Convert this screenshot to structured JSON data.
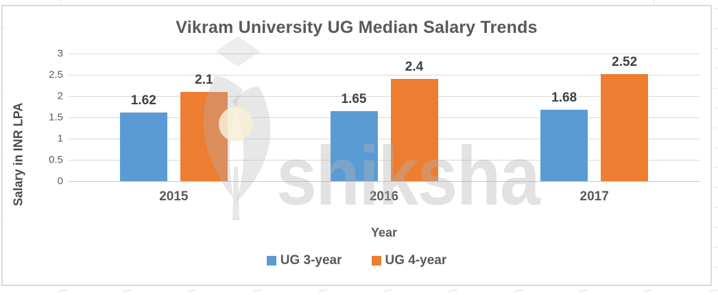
{
  "chart_data": {
    "type": "bar",
    "title": "Vikram University UG Median Salary Trends",
    "xlabel": "Year",
    "ylabel": "Salary in INR LPA",
    "categories": [
      "2015",
      "2016",
      "2017"
    ],
    "series": [
      {
        "name": "UG 3-year",
        "color": "#5B9BD5",
        "values": [
          1.62,
          1.65,
          1.68
        ]
      },
      {
        "name": "UG 4-year",
        "color": "#ED7D31",
        "values": [
          2.1,
          2.4,
          2.52
        ]
      }
    ],
    "data_labels": [
      [
        "1.62",
        "1.65",
        "1.68"
      ],
      [
        "2.1",
        "2.4",
        "2.52"
      ]
    ],
    "ylim": [
      0,
      3
    ],
    "yticks": [
      0,
      0.5,
      1,
      1.5,
      2,
      2.5,
      3
    ],
    "ytick_labels": [
      "0",
      "0.5",
      "1",
      "1.5",
      "2",
      "2.5",
      "3"
    ],
    "grid": true,
    "legend_position": "bottom"
  },
  "watermark": {
    "text": "shiksha"
  },
  "colors": {
    "gridline": "#D9D9D9",
    "baseline": "#C6C6C6",
    "frame_border": "#D9D9D9",
    "axis_text": "#595959",
    "data_label_text": "#3F3F3F"
  }
}
